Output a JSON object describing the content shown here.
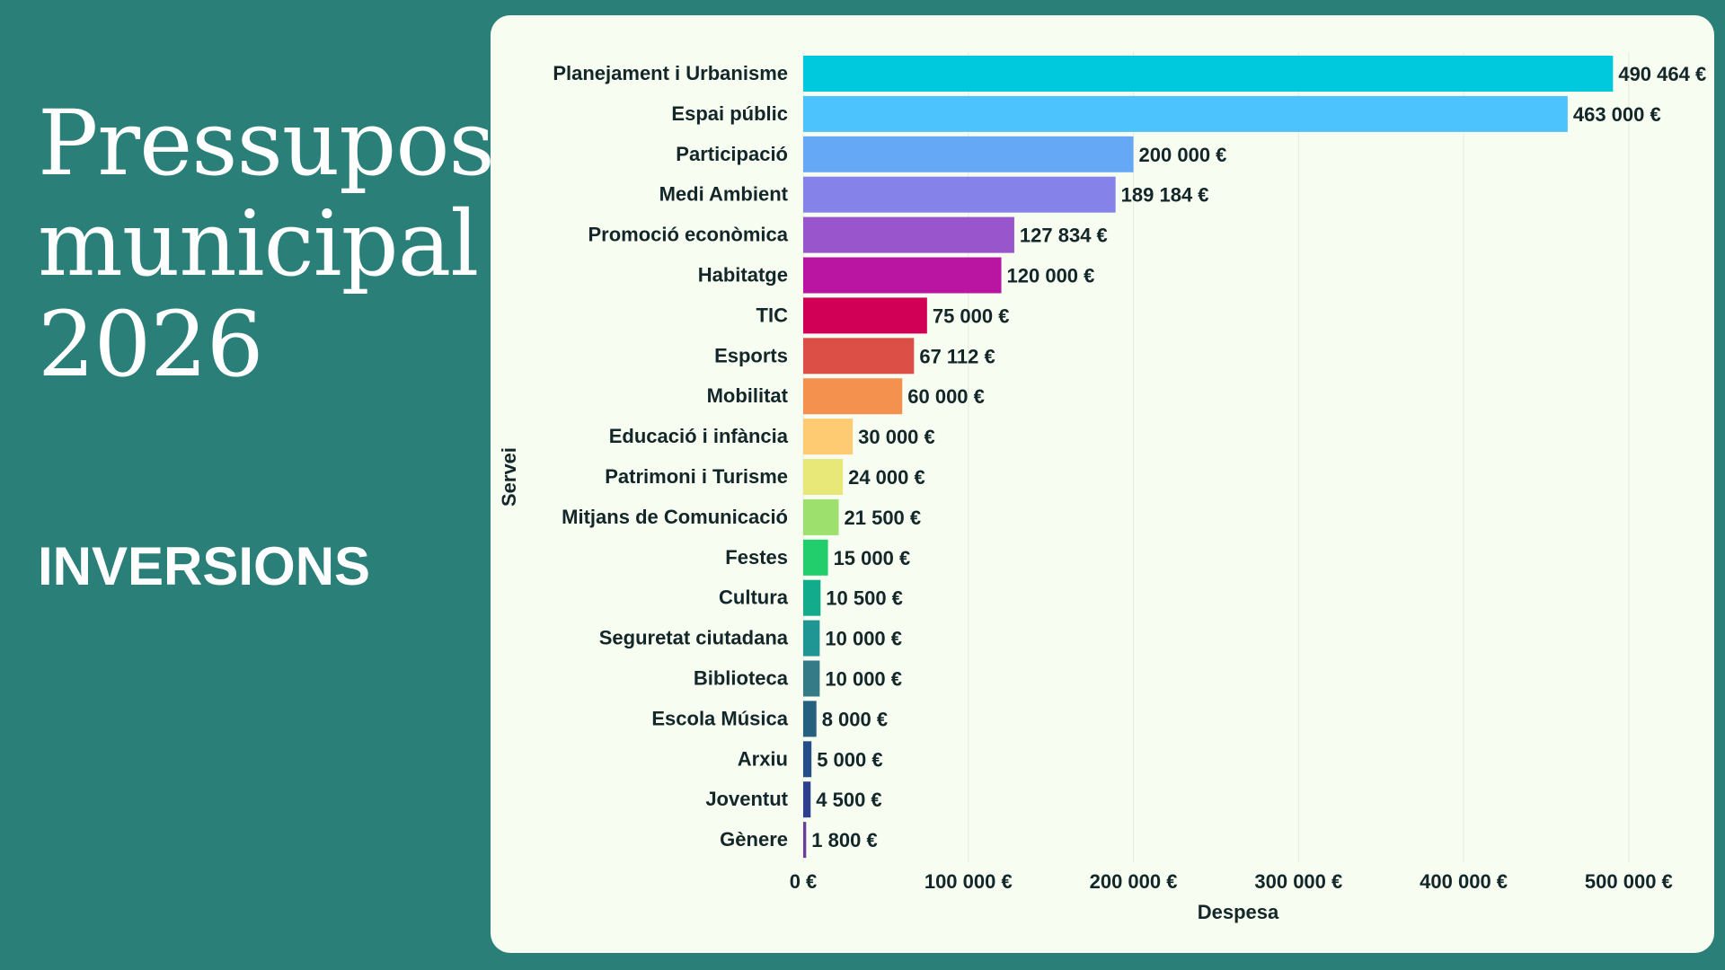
{
  "heading": {
    "title_lines": [
      "Pressupost",
      "municipal",
      "2026"
    ],
    "subtitle": "INVERSIONS"
  },
  "chart_data": {
    "type": "bar",
    "orientation": "horizontal",
    "xlabel": "Despesa",
    "ylabel": "Servei",
    "xlim": [
      0,
      530000
    ],
    "x_ticks": [
      0,
      100000,
      200000,
      300000,
      400000,
      500000
    ],
    "x_tick_labels": [
      "0 €",
      "100 000 €",
      "200 000 €",
      "300 000 €",
      "400 000 €",
      "500 000 €"
    ],
    "grid": "vertical",
    "categories": [
      "Planejament i Urbanisme",
      "Espai públic",
      "Participació",
      "Medi Ambient",
      "Promoció econòmica",
      "Habitatge",
      "TIC",
      "Esports",
      "Mobilitat",
      "Educació i infància",
      "Patrimoni i Turisme",
      "Mitjans de Comunicació",
      "Festes",
      "Cultura",
      "Seguretat ciutadana",
      "Biblioteca",
      "Escola Música",
      "Arxiu",
      "Joventut",
      "Gènere"
    ],
    "values": [
      490464,
      463000,
      200000,
      189184,
      127834,
      120000,
      75000,
      67112,
      60000,
      30000,
      24000,
      21500,
      15000,
      10500,
      10000,
      10000,
      8000,
      5000,
      4500,
      1800
    ],
    "value_labels": [
      "490 464 €",
      "463 000 €",
      "200 000 €",
      "189 184 €",
      "127 834 €",
      "120 000 €",
      "75 000 €",
      "67 112 €",
      "60 000 €",
      "30 000 €",
      "24 000 €",
      "21 500 €",
      "15 000 €",
      "10 500 €",
      "10 000 €",
      "10 000 €",
      "8 000 €",
      "5 000 €",
      "4 500 €",
      "1 800 €"
    ],
    "colors": [
      "#00c9dd",
      "#4cc3fd",
      "#64a8f6",
      "#8583e9",
      "#9955cb",
      "#b914a2",
      "#d10056",
      "#dc4f46",
      "#f5914e",
      "#fecb73",
      "#e7e877",
      "#9de06e",
      "#22cd6c",
      "#12ac8c",
      "#1f9693",
      "#347a87",
      "#25607e",
      "#244e87",
      "#2d3f8f",
      "#6a3e97"
    ]
  }
}
